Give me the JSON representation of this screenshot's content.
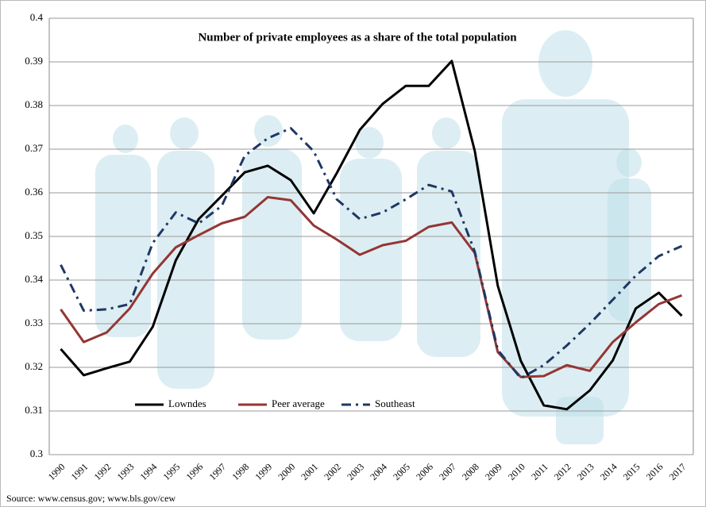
{
  "chart_data": {
    "type": "line",
    "title": "Number of private employees as a share of the total population",
    "source": "Source: www.census.gov; www.bls.gov/cew",
    "categories": [
      "1990",
      "1991",
      "1992",
      "1993",
      "1994",
      "1995",
      "1996",
      "1997",
      "1998",
      "1999",
      "2000",
      "2001",
      "2002",
      "2003",
      "2004",
      "2005",
      "2006",
      "2007",
      "2008",
      "2009",
      "2010",
      "2011",
      "2012",
      "2013",
      "2014",
      "2015",
      "2016",
      "2017"
    ],
    "series": [
      {
        "name": "Lowndes",
        "color": "#000000",
        "values": [
          0.3242,
          0.3182,
          0.3198,
          0.3213,
          0.3293,
          0.3445,
          0.354,
          0.3593,
          0.3647,
          0.3662,
          0.3629,
          0.3553,
          0.3645,
          0.3744,
          0.3804,
          0.3845,
          0.3845,
          0.3902,
          0.3696,
          0.3387,
          0.3215,
          0.3113,
          0.3104,
          0.3147,
          0.3216,
          0.3335,
          0.3371,
          0.3318
        ]
      },
      {
        "name": "Peer average",
        "color": "#943634",
        "values": [
          0.3333,
          0.3258,
          0.328,
          0.3335,
          0.3415,
          0.3475,
          0.3503,
          0.353,
          0.3545,
          0.359,
          0.3583,
          0.3525,
          0.3493,
          0.3458,
          0.348,
          0.349,
          0.3522,
          0.3532,
          0.3462,
          0.3235,
          0.3178,
          0.318,
          0.3205,
          0.3192,
          0.3258,
          0.3303,
          0.3345,
          0.3365
        ]
      },
      {
        "name": "Southeast",
        "color": "#1f3864",
        "dash": "dashdot",
        "values": [
          0.3435,
          0.333,
          0.3333,
          0.3345,
          0.3485,
          0.3555,
          0.353,
          0.357,
          0.3685,
          0.3725,
          0.3748,
          0.3695,
          0.3585,
          0.354,
          0.3555,
          0.3585,
          0.3618,
          0.3603,
          0.3465,
          0.324,
          0.3175,
          0.3205,
          0.325,
          0.33,
          0.3355,
          0.341,
          0.3455,
          0.3478
        ]
      }
    ],
    "ylim": [
      0.3,
      0.4
    ],
    "yticks": [
      0.3,
      0.31,
      0.32,
      0.33,
      0.34,
      0.35,
      0.36,
      0.37,
      0.38,
      0.39,
      0.4
    ],
    "grid": true,
    "legend": "lower left"
  }
}
